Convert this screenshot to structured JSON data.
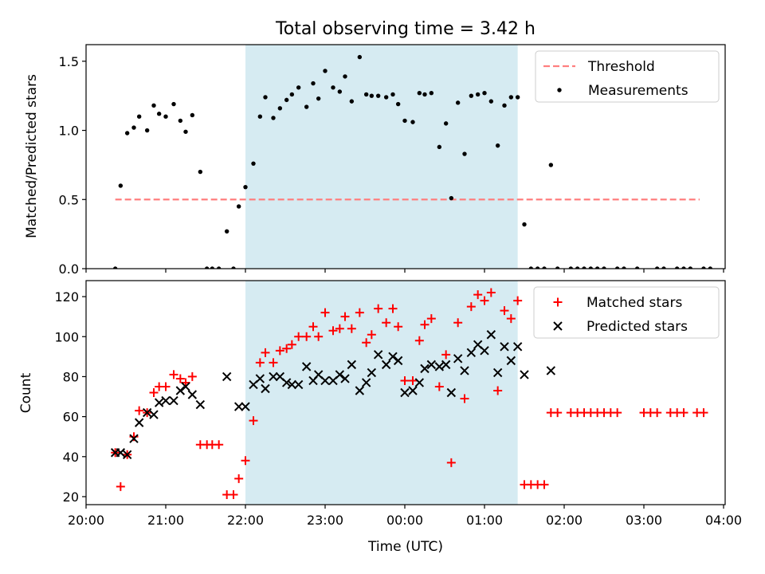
{
  "title": "Total observing time = 3.42 h",
  "colors": {
    "shade": "#add8e6",
    "threshold": "#ff7f7f",
    "matched": "#ff0000",
    "predicted": "#000000",
    "measurement": "#000000"
  },
  "chart_data": [
    {
      "type": "scatter",
      "panel": "top",
      "ylabel": "Matched/Predicted stars",
      "xlabel": "",
      "ylim": [
        0,
        1.62
      ],
      "yticks": [
        0.0,
        0.5,
        1.0,
        1.5
      ],
      "ytick_labels": [
        "0.0",
        "0.5",
        "1.0",
        "1.5"
      ],
      "x_range": [
        "20:00",
        "04:00"
      ],
      "legend": {
        "placement": "top-right",
        "entries": [
          "Threshold",
          "Measurements"
        ]
      },
      "shaded_interval": [
        "22:00",
        "01:25"
      ],
      "threshold": {
        "name": "Threshold",
        "value": 0.5,
        "x_start": "20:22",
        "x_end": "03:42"
      },
      "series": [
        {
          "name": "Measurements",
          "marker": "dot",
          "points": [
            [
              "20:22",
              0.0
            ],
            [
              "20:26",
              0.6
            ],
            [
              "20:31",
              0.98
            ],
            [
              "20:36",
              1.02
            ],
            [
              "20:40",
              1.1
            ],
            [
              "20:46",
              1.0
            ],
            [
              "20:51",
              1.18
            ],
            [
              "20:55",
              1.12
            ],
            [
              "21:00",
              1.1
            ],
            [
              "21:06",
              1.19
            ],
            [
              "21:11",
              1.07
            ],
            [
              "21:15",
              0.99
            ],
            [
              "21:20",
              1.11
            ],
            [
              "21:26",
              0.7
            ],
            [
              "21:31",
              0.0
            ],
            [
              "21:35",
              0.0
            ],
            [
              "21:40",
              0.0
            ],
            [
              "21:46",
              0.27
            ],
            [
              "21:51",
              0.0
            ],
            [
              "21:55",
              0.45
            ],
            [
              "22:00",
              0.59
            ],
            [
              "22:06",
              0.76
            ],
            [
              "22:11",
              1.1
            ],
            [
              "22:15",
              1.24
            ],
            [
              "22:21",
              1.09
            ],
            [
              "22:26",
              1.16
            ],
            [
              "22:31",
              1.22
            ],
            [
              "22:35",
              1.26
            ],
            [
              "22:40",
              1.31
            ],
            [
              "22:46",
              1.17
            ],
            [
              "22:51",
              1.34
            ],
            [
              "22:55",
              1.23
            ],
            [
              "23:00",
              1.43
            ],
            [
              "23:06",
              1.31
            ],
            [
              "23:11",
              1.28
            ],
            [
              "23:15",
              1.39
            ],
            [
              "23:20",
              1.21
            ],
            [
              "23:26",
              1.53
            ],
            [
              "23:31",
              1.26
            ],
            [
              "23:35",
              1.25
            ],
            [
              "23:40",
              1.25
            ],
            [
              "23:46",
              1.24
            ],
            [
              "23:51",
              1.26
            ],
            [
              "23:55",
              1.19
            ],
            [
              "00:00",
              1.07
            ],
            [
              "00:06",
              1.06
            ],
            [
              "00:11",
              1.27
            ],
            [
              "00:15",
              1.26
            ],
            [
              "00:20",
              1.27
            ],
            [
              "00:26",
              0.88
            ],
            [
              "00:31",
              1.05
            ],
            [
              "00:35",
              0.51
            ],
            [
              "00:40",
              1.2
            ],
            [
              "00:45",
              0.83
            ],
            [
              "00:50",
              1.25
            ],
            [
              "00:55",
              1.26
            ],
            [
              "01:00",
              1.27
            ],
            [
              "01:05",
              1.21
            ],
            [
              "01:10",
              0.89
            ],
            [
              "01:15",
              1.18
            ],
            [
              "01:20",
              1.24
            ],
            [
              "01:25",
              1.24
            ],
            [
              "01:30",
              0.32
            ],
            [
              "01:35",
              0.0
            ],
            [
              "01:40",
              0.0
            ],
            [
              "01:45",
              0.0
            ],
            [
              "01:50",
              0.75
            ],
            [
              "01:55",
              0.0
            ],
            [
              "02:05",
              0.0
            ],
            [
              "02:10",
              0.0
            ],
            [
              "02:15",
              0.0
            ],
            [
              "02:20",
              0.0
            ],
            [
              "02:25",
              0.0
            ],
            [
              "02:30",
              0.0
            ],
            [
              "02:40",
              0.0
            ],
            [
              "02:45",
              0.0
            ],
            [
              "02:55",
              0.0
            ],
            [
              "03:10",
              0.0
            ],
            [
              "03:15",
              0.0
            ],
            [
              "03:25",
              0.0
            ],
            [
              "03:30",
              0.0
            ],
            [
              "03:35",
              0.0
            ],
            [
              "03:45",
              0.0
            ],
            [
              "03:50",
              0.0
            ]
          ]
        }
      ]
    },
    {
      "type": "scatter",
      "panel": "bottom",
      "ylabel": "Count",
      "xlabel": "Time (UTC)",
      "ylim": [
        16,
        128
      ],
      "yticks": [
        20,
        40,
        60,
        80,
        100,
        120
      ],
      "ytick_labels": [
        "20",
        "40",
        "60",
        "80",
        "100",
        "120"
      ],
      "x_range": [
        "20:00",
        "04:00"
      ],
      "xticks": [
        "20:00",
        "21:00",
        "22:00",
        "23:00",
        "00:00",
        "01:00",
        "02:00",
        "03:00",
        "04:00"
      ],
      "xtick_labels": [
        "20:00",
        "21:00",
        "22:00",
        "23:00",
        "00:00",
        "01:00",
        "02:00",
        "03:00",
        "04:00"
      ],
      "legend": {
        "placement": "top-right",
        "entries": [
          "Matched stars",
          "Predicted stars"
        ]
      },
      "shaded_interval": [
        "22:00",
        "01:25"
      ],
      "series": [
        {
          "name": "Matched stars",
          "marker": "plus",
          "points": [
            [
              "20:22",
              42
            ],
            [
              "20:26",
              25
            ],
            [
              "20:31",
              41
            ],
            [
              "20:36",
              50
            ],
            [
              "20:40",
              63
            ],
            [
              "20:46",
              62
            ],
            [
              "20:51",
              72
            ],
            [
              "20:55",
              75
            ],
            [
              "21:00",
              75
            ],
            [
              "21:06",
              81
            ],
            [
              "21:11",
              79
            ],
            [
              "21:15",
              77
            ],
            [
              "21:20",
              80
            ],
            [
              "21:26",
              46
            ],
            [
              "21:31",
              46
            ],
            [
              "21:35",
              46
            ],
            [
              "21:40",
              46
            ],
            [
              "21:46",
              21
            ],
            [
              "21:51",
              21
            ],
            [
              "21:55",
              29
            ],
            [
              "22:00",
              38
            ],
            [
              "22:06",
              58
            ],
            [
              "22:11",
              87
            ],
            [
              "22:15",
              92
            ],
            [
              "22:21",
              87
            ],
            [
              "22:26",
              93
            ],
            [
              "22:31",
              94
            ],
            [
              "22:35",
              96
            ],
            [
              "22:40",
              100
            ],
            [
              "22:46",
              100
            ],
            [
              "22:51",
              105
            ],
            [
              "22:55",
              100
            ],
            [
              "23:00",
              112
            ],
            [
              "23:06",
              103
            ],
            [
              "23:11",
              104
            ],
            [
              "23:15",
              110
            ],
            [
              "23:20",
              104
            ],
            [
              "23:26",
              112
            ],
            [
              "23:31",
              97
            ],
            [
              "23:35",
              101
            ],
            [
              "23:40",
              114
            ],
            [
              "23:46",
              107
            ],
            [
              "23:51",
              114
            ],
            [
              "23:55",
              105
            ],
            [
              "00:00",
              78
            ],
            [
              "00:06",
              78
            ],
            [
              "00:11",
              98
            ],
            [
              "00:15",
              106
            ],
            [
              "00:20",
              109
            ],
            [
              "00:26",
              75
            ],
            [
              "00:31",
              91
            ],
            [
              "00:35",
              37
            ],
            [
              "00:40",
              107
            ],
            [
              "00:45",
              69
            ],
            [
              "00:50",
              115
            ],
            [
              "00:55",
              121
            ],
            [
              "01:00",
              118
            ],
            [
              "01:05",
              122
            ],
            [
              "01:10",
              73
            ],
            [
              "01:15",
              113
            ],
            [
              "01:20",
              109
            ],
            [
              "01:25",
              118
            ],
            [
              "01:30",
              26
            ],
            [
              "01:35",
              26
            ],
            [
              "01:40",
              26
            ],
            [
              "01:45",
              26
            ],
            [
              "01:50",
              62
            ],
            [
              "01:55",
              62
            ],
            [
              "02:05",
              62
            ],
            [
              "02:10",
              62
            ],
            [
              "02:15",
              62
            ],
            [
              "02:20",
              62
            ],
            [
              "02:25",
              62
            ],
            [
              "02:30",
              62
            ],
            [
              "02:35",
              62
            ],
            [
              "02:40",
              62
            ],
            [
              "03:00",
              62
            ],
            [
              "03:05",
              62
            ],
            [
              "03:10",
              62
            ],
            [
              "03:20",
              62
            ],
            [
              "03:25",
              62
            ],
            [
              "03:30",
              62
            ],
            [
              "03:40",
              62
            ],
            [
              "03:45",
              62
            ]
          ]
        },
        {
          "name": "Predicted stars",
          "marker": "x",
          "points": [
            [
              "20:22",
              42
            ],
            [
              "20:26",
              42
            ],
            [
              "20:31",
              41
            ],
            [
              "20:36",
              49
            ],
            [
              "20:40",
              57
            ],
            [
              "20:46",
              62
            ],
            [
              "20:51",
              61
            ],
            [
              "20:55",
              67
            ],
            [
              "21:00",
              68
            ],
            [
              "21:06",
              68
            ],
            [
              "21:11",
              73
            ],
            [
              "21:15",
              75
            ],
            [
              "21:20",
              71
            ],
            [
              "21:26",
              66
            ],
            [
              "21:46",
              80
            ],
            [
              "21:55",
              65
            ],
            [
              "22:00",
              65
            ],
            [
              "22:06",
              76
            ],
            [
              "22:11",
              79
            ],
            [
              "22:15",
              74
            ],
            [
              "22:21",
              80
            ],
            [
              "22:26",
              80
            ],
            [
              "22:31",
              77
            ],
            [
              "22:35",
              76
            ],
            [
              "22:40",
              76
            ],
            [
              "22:46",
              85
            ],
            [
              "22:51",
              78
            ],
            [
              "22:55",
              81
            ],
            [
              "23:00",
              78
            ],
            [
              "23:06",
              78
            ],
            [
              "23:11",
              81
            ],
            [
              "23:15",
              79
            ],
            [
              "23:20",
              86
            ],
            [
              "23:26",
              73
            ],
            [
              "23:31",
              77
            ],
            [
              "23:35",
              82
            ],
            [
              "23:40",
              91
            ],
            [
              "23:46",
              86
            ],
            [
              "23:51",
              90
            ],
            [
              "23:55",
              88
            ],
            [
              "00:00",
              72
            ],
            [
              "00:06",
              73
            ],
            [
              "00:11",
              77
            ],
            [
              "00:15",
              84
            ],
            [
              "00:20",
              86
            ],
            [
              "00:26",
              85
            ],
            [
              "00:31",
              86
            ],
            [
              "00:35",
              72
            ],
            [
              "00:40",
              89
            ],
            [
              "00:45",
              83
            ],
            [
              "00:50",
              92
            ],
            [
              "00:55",
              96
            ],
            [
              "01:00",
              93
            ],
            [
              "01:05",
              101
            ],
            [
              "01:10",
              82
            ],
            [
              "01:15",
              95
            ],
            [
              "01:20",
              88
            ],
            [
              "01:25",
              95
            ],
            [
              "01:30",
              81
            ],
            [
              "01:50",
              83
            ]
          ]
        }
      ]
    }
  ]
}
